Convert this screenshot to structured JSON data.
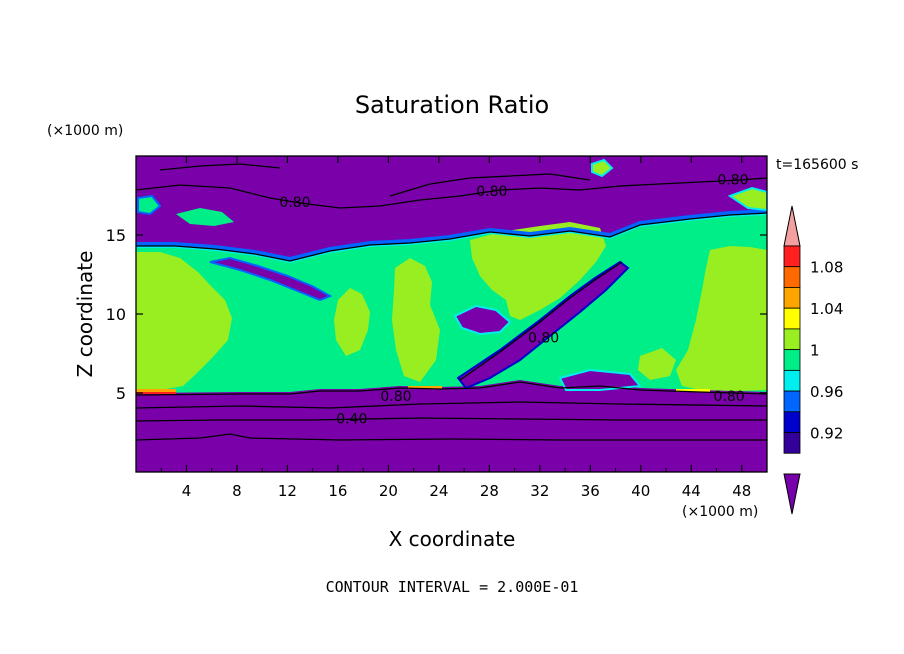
{
  "chart_data": {
    "type": "heatmap",
    "title": "Saturation Ratio",
    "xlabel": "X coordinate",
    "ylabel": "Z coordinate",
    "x_unit": "(×1000 m)",
    "y_unit": "(×1000 m)",
    "time_label": "t=165600 s",
    "footer": "CONTOUR INTERVAL = 2.000E-01",
    "xlim": [
      0,
      50
    ],
    "ylim": [
      0,
      20
    ],
    "x_ticks": [
      4,
      8,
      12,
      16,
      20,
      24,
      28,
      32,
      36,
      40,
      44,
      48
    ],
    "y_ticks": [
      5,
      10,
      15
    ],
    "colorbar": {
      "labels": [
        "1.08",
        "1.04",
        "1",
        "0.96",
        "0.92"
      ],
      "label_values": [
        1.08,
        1.04,
        1.0,
        0.96,
        0.92
      ],
      "bands": [
        {
          "from": 1.1,
          "to": 1.12,
          "color": "#f4a0a0"
        },
        {
          "from": 1.08,
          "to": 1.1,
          "color": "#ff2020"
        },
        {
          "from": 1.06,
          "to": 1.08,
          "color": "#ff6a00"
        },
        {
          "from": 1.04,
          "to": 1.06,
          "color": "#ffa500"
        },
        {
          "from": 1.02,
          "to": 1.04,
          "color": "#ffff00"
        },
        {
          "from": 1.0,
          "to": 1.02,
          "color": "#99ee22"
        },
        {
          "from": 0.98,
          "to": 1.0,
          "color": "#00ee88"
        },
        {
          "from": 0.96,
          "to": 0.98,
          "color": "#00eeee"
        },
        {
          "from": 0.94,
          "to": 0.96,
          "color": "#0066ff"
        },
        {
          "from": 0.92,
          "to": 0.94,
          "color": "#0000cc"
        },
        {
          "from": 0.9,
          "to": 0.92,
          "color": "#330099"
        },
        {
          "from": 0.88,
          "to": 0.9,
          "color": "#7700aa"
        }
      ]
    },
    "contour_labels": [
      {
        "text": "0.80",
        "x": 12.6,
        "y": 17.1
      },
      {
        "text": "0.80",
        "x": 28.2,
        "y": 17.8
      },
      {
        "text": "0.80",
        "x": 47.3,
        "y": 18.5
      },
      {
        "text": "0.80",
        "x": 32.3,
        "y": 8.5
      },
      {
        "text": "0.80",
        "x": 20.6,
        "y": 4.8
      },
      {
        "text": "0.80",
        "x": 47.0,
        "y": 4.8
      },
      {
        "text": "0.40",
        "x": 17.1,
        "y": 3.4
      }
    ],
    "colors": {
      "background": "#7a00aa",
      "cloud": "#00ee88",
      "saturated": "#99ee22",
      "contour": "#000000"
    }
  }
}
